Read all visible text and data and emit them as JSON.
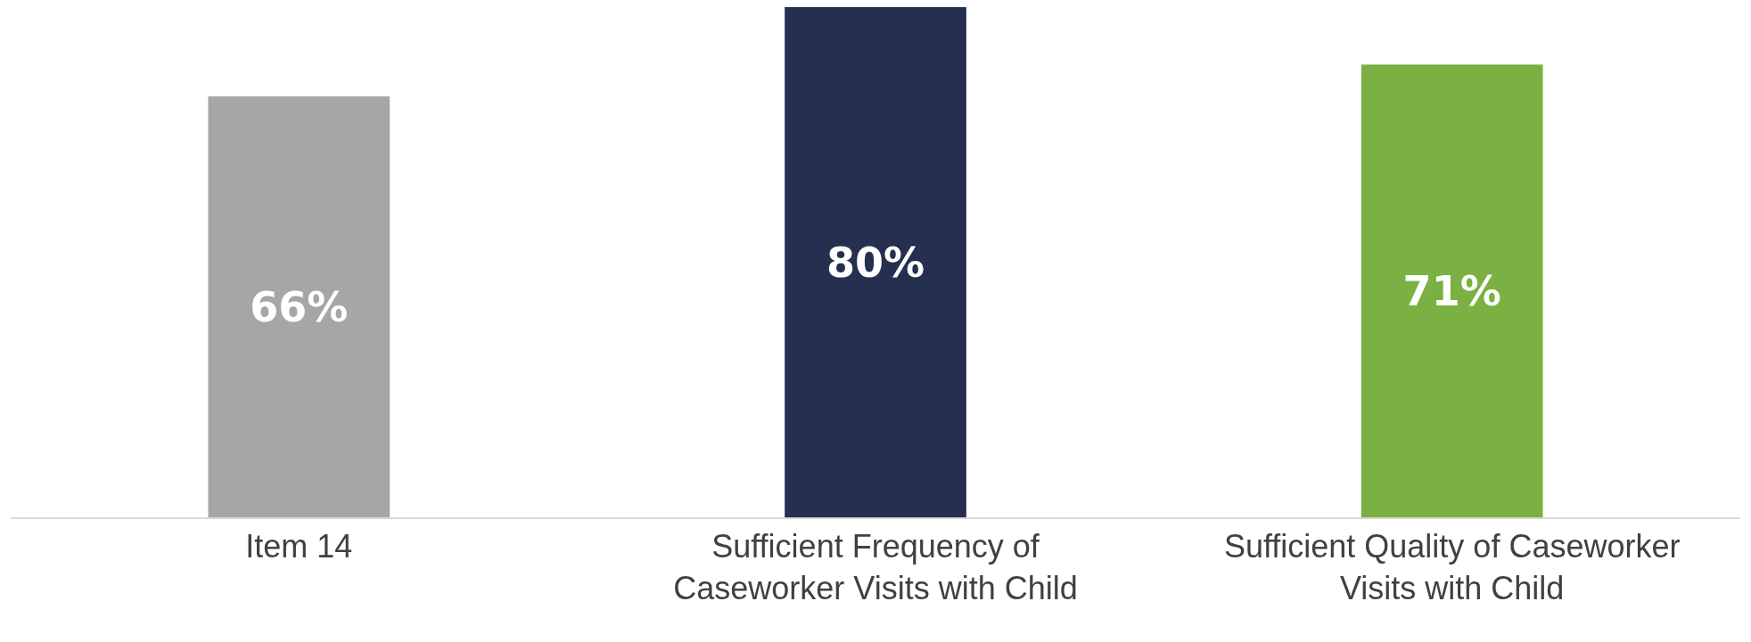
{
  "chart_data": {
    "type": "bar",
    "categories": [
      "Item 14",
      "Sufficient Frequency of Caseworker Visits with Child",
      "Sufficient Quality of Caseworker Visits with Child"
    ],
    "values": [
      66,
      80,
      71
    ],
    "colors": [
      "#a6a6a6",
      "#253050",
      "#7ab142"
    ],
    "value_labels": [
      "66%",
      "80%",
      "71%"
    ],
    "ylim": [
      0,
      80
    ]
  }
}
